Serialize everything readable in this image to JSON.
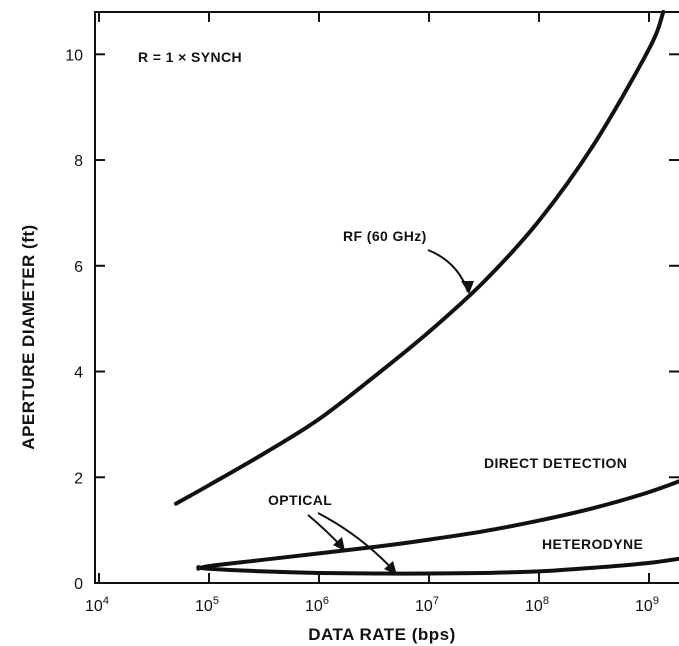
{
  "chart_data": {
    "type": "line",
    "xlabel": "DATA RATE (bps)",
    "ylabel": "APERTURE DIAMETER (ft)",
    "xscale": "log",
    "xlim": [
      10000,
      2500000000
    ],
    "ylim": [
      0,
      10.8
    ],
    "x_ticks": [
      {
        "base": "10",
        "exp": "4",
        "value": 10000
      },
      {
        "base": "10",
        "exp": "5",
        "value": 100000
      },
      {
        "base": "10",
        "exp": "6",
        "value": 1000000
      },
      {
        "base": "10",
        "exp": "7",
        "value": 10000000
      },
      {
        "base": "10",
        "exp": "8",
        "value": 100000000
      },
      {
        "base": "10",
        "exp": "9",
        "value": 1000000000
      }
    ],
    "y_ticks": [
      "0",
      "2",
      "4",
      "6",
      "8",
      "10"
    ],
    "y_tick_values": [
      0,
      2,
      4,
      6,
      8,
      10
    ],
    "series": [
      {
        "name": "RF (60 GHz)",
        "x": [
          50000,
          100000,
          316000,
          1000000,
          3160000,
          10000000,
          31600000,
          100000000,
          316000000,
          1000000000,
          1350000000
        ],
        "y": [
          1.5,
          1.85,
          2.45,
          3.1,
          3.9,
          4.75,
          5.7,
          6.85,
          8.3,
          10.1,
          10.8
        ]
      },
      {
        "name": "DIRECT DETECTION",
        "x": [
          80000,
          100000,
          316000,
          1000000,
          3160000,
          10000000,
          31600000,
          100000000,
          316000000,
          1000000000,
          2500000000
        ],
        "y": [
          0.27,
          0.32,
          0.44,
          0.56,
          0.68,
          0.82,
          0.98,
          1.18,
          1.42,
          1.72,
          2.02
        ]
      },
      {
        "name": "HETERODYNE",
        "x": [
          80000,
          100000,
          316000,
          1000000,
          3160000,
          10000000,
          31600000,
          100000000,
          316000000,
          1000000000,
          2500000000
        ],
        "y": [
          0.3,
          0.27,
          0.22,
          0.19,
          0.18,
          0.18,
          0.19,
          0.22,
          0.29,
          0.38,
          0.5
        ]
      }
    ],
    "annotations": {
      "condition": "R = 1 × SYNCH",
      "rf": "RF (60 GHz)",
      "direct": "DIRECT DETECTION",
      "heterodyne": "HETERODYNE",
      "optical": "OPTICAL"
    },
    "grid": false,
    "legend": "none"
  }
}
